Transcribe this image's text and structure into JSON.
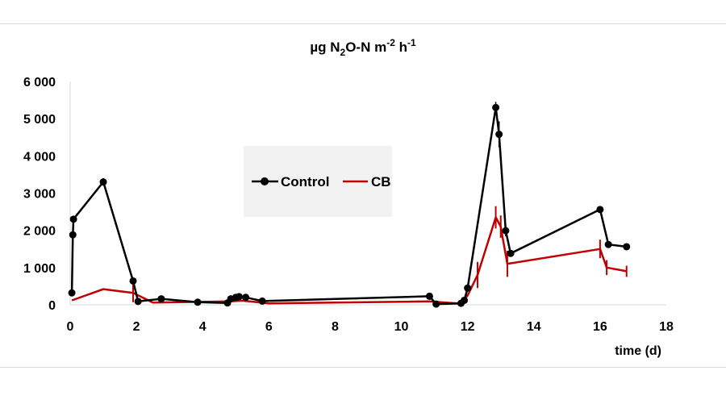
{
  "chart_data": {
    "type": "line",
    "title": {
      "base": "µg N",
      "sub1": "2",
      "mid": "O-N m",
      "sup1": "-2",
      "mid2": " h",
      "sup2": "-1"
    },
    "xlabel": "time (d)",
    "ylabel": "",
    "xlim": [
      0,
      18
    ],
    "ylim": [
      0,
      6000
    ],
    "x_ticks": [
      "0",
      "2",
      "4",
      "6",
      "8",
      "10",
      "12",
      "14",
      "16",
      "18"
    ],
    "x_tick_values": [
      0,
      2,
      4,
      6,
      8,
      10,
      12,
      14,
      16,
      18
    ],
    "y_ticks": [
      "0",
      "1 000",
      "2 000",
      "3 000",
      "4 000",
      "5 000",
      "6 000"
    ],
    "y_tick_values": [
      0,
      1000,
      2000,
      3000,
      4000,
      5000,
      6000
    ],
    "grid": false,
    "legend_position": "center-left",
    "series": [
      {
        "name": "Control",
        "color": "#000000",
        "marker": "circle",
        "points": [
          [
            0.05,
            320
          ],
          [
            0.08,
            1880
          ],
          [
            0.1,
            2300
          ],
          [
            1.0,
            3300
          ],
          [
            1.9,
            640
          ],
          [
            2.05,
            90
          ],
          [
            2.75,
            160
          ],
          [
            3.85,
            70
          ],
          [
            4.75,
            50
          ],
          [
            4.85,
            160
          ],
          [
            5.0,
            200
          ],
          [
            5.1,
            220
          ],
          [
            5.3,
            200
          ],
          [
            5.8,
            100
          ],
          [
            10.85,
            230
          ],
          [
            11.05,
            20
          ],
          [
            11.8,
            40
          ],
          [
            11.9,
            120
          ],
          [
            12.0,
            450
          ],
          [
            12.85,
            5300
          ],
          [
            12.95,
            4580
          ],
          [
            13.15,
            1990
          ],
          [
            13.3,
            1380
          ],
          [
            16.0,
            2560
          ],
          [
            16.25,
            1620
          ],
          [
            16.8,
            1560
          ]
        ],
        "errors": [
          [
            1.0,
            100
          ],
          [
            12.85,
            150
          ],
          [
            12.95,
            350
          ],
          [
            13.15,
            150
          ]
        ]
      },
      {
        "name": "CB",
        "color": "#c00000",
        "marker": "none",
        "points": [
          [
            0.05,
            120
          ],
          [
            1.0,
            420
          ],
          [
            1.9,
            320
          ],
          [
            2.5,
            60
          ],
          [
            4.8,
            90
          ],
          [
            5.2,
            110
          ],
          [
            6.0,
            40
          ],
          [
            10.85,
            90
          ],
          [
            11.8,
            30
          ],
          [
            12.0,
            250
          ],
          [
            12.3,
            800
          ],
          [
            12.85,
            2350
          ],
          [
            13.0,
            2100
          ],
          [
            13.2,
            1100
          ],
          [
            16.0,
            1500
          ],
          [
            16.2,
            1000
          ],
          [
            16.8,
            900
          ]
        ],
        "errors": [
          [
            1.9,
            250
          ],
          [
            12.3,
            350
          ],
          [
            12.85,
            300
          ],
          [
            13.0,
            300
          ],
          [
            13.2,
            350
          ],
          [
            16.0,
            250
          ],
          [
            16.2,
            200
          ],
          [
            16.8,
            150
          ]
        ]
      }
    ],
    "legend_bg": "#f2f2f2",
    "axis_color": "#d9d9d9"
  }
}
